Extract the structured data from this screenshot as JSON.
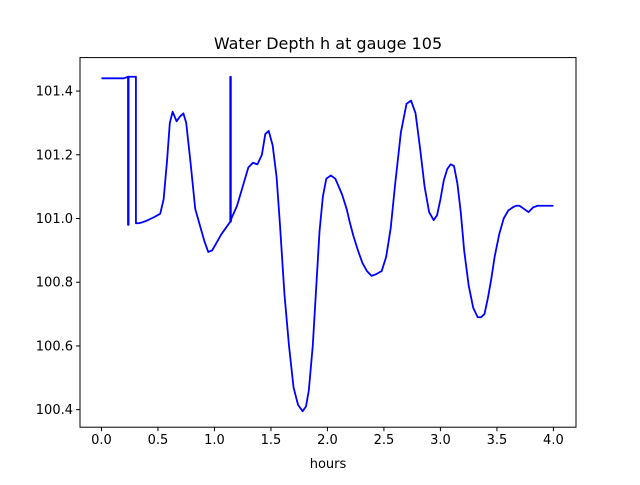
{
  "chart_data": {
    "type": "line",
    "title": "Water Depth h at gauge 105",
    "xlabel": "hours",
    "ylabel": "",
    "xlim": [
      -0.19,
      4.2
    ],
    "ylim": [
      100.345,
      101.505
    ],
    "xticks": [
      0.0,
      0.5,
      1.0,
      1.5,
      2.0,
      2.5,
      3.0,
      3.5,
      4.0
    ],
    "xtick_labels": [
      "0.0",
      "0.5",
      "1.0",
      "1.5",
      "2.0",
      "2.5",
      "3.0",
      "3.5",
      "4.0"
    ],
    "yticks": [
      100.4,
      100.6,
      100.8,
      101.0,
      101.2,
      101.4
    ],
    "ytick_labels": [
      "100.4",
      "100.6",
      "100.8",
      "101.0",
      "101.2",
      "101.4"
    ],
    "grid": false,
    "series": [
      {
        "color": "#0000ff",
        "x": [
          0.0,
          0.1,
          0.2,
          0.235,
          0.235,
          0.24,
          0.24,
          0.3,
          0.305,
          0.305,
          0.33,
          0.36,
          0.4,
          0.44,
          0.47,
          0.52,
          0.55,
          0.58,
          0.605,
          0.63,
          0.665,
          0.695,
          0.725,
          0.75,
          0.79,
          0.83,
          0.87,
          0.91,
          0.945,
          0.98,
          1.02,
          1.06,
          1.1,
          1.14,
          1.14,
          1.145,
          1.145,
          1.15,
          1.2,
          1.25,
          1.3,
          1.34,
          1.38,
          1.42,
          1.45,
          1.48,
          1.515,
          1.55,
          1.58,
          1.62,
          1.66,
          1.7,
          1.74,
          1.78,
          1.81,
          1.835,
          1.87,
          1.9,
          1.93,
          1.96,
          1.99,
          2.03,
          2.07,
          2.1,
          2.13,
          2.17,
          2.2,
          2.23,
          2.27,
          2.31,
          2.35,
          2.39,
          2.43,
          2.48,
          2.52,
          2.56,
          2.6,
          2.65,
          2.7,
          2.74,
          2.78,
          2.82,
          2.86,
          2.9,
          2.94,
          2.97,
          3.0,
          3.03,
          3.06,
          3.09,
          3.12,
          3.15,
          3.18,
          3.21,
          3.25,
          3.29,
          3.33,
          3.36,
          3.39,
          3.42,
          3.45,
          3.48,
          3.52,
          3.56,
          3.6,
          3.64,
          3.67,
          3.7,
          3.74,
          3.78,
          3.82,
          3.86,
          3.89,
          3.92,
          3.96,
          4.0
        ],
        "y": [
          101.44,
          101.44,
          101.44,
          101.445,
          100.98,
          100.98,
          101.445,
          101.445,
          101.445,
          100.985,
          100.985,
          100.988,
          100.993,
          101.0,
          101.005,
          101.015,
          101.06,
          101.18,
          101.3,
          101.335,
          101.305,
          101.32,
          101.33,
          101.3,
          101.17,
          101.03,
          100.98,
          100.93,
          100.895,
          100.9,
          100.925,
          100.95,
          100.97,
          100.99,
          101.445,
          101.445,
          100.99,
          101.0,
          101.04,
          101.1,
          101.16,
          101.175,
          101.17,
          101.2,
          101.265,
          101.275,
          101.23,
          101.13,
          100.98,
          100.76,
          100.6,
          100.47,
          100.415,
          100.395,
          100.41,
          100.46,
          100.6,
          100.78,
          100.96,
          101.07,
          101.125,
          101.135,
          101.125,
          101.1,
          101.075,
          101.03,
          100.985,
          100.945,
          100.9,
          100.86,
          100.835,
          100.82,
          100.825,
          100.835,
          100.88,
          100.97,
          101.11,
          101.27,
          101.36,
          101.37,
          101.33,
          101.22,
          101.1,
          101.02,
          100.995,
          101.01,
          101.06,
          101.12,
          101.155,
          101.17,
          101.165,
          101.11,
          101.02,
          100.9,
          100.79,
          100.72,
          100.69,
          100.69,
          100.7,
          100.75,
          100.81,
          100.88,
          100.95,
          101.0,
          101.025,
          101.035,
          101.04,
          101.04,
          101.03,
          101.02,
          101.035,
          101.04,
          101.04,
          101.04,
          101.04,
          101.04
        ]
      }
    ]
  }
}
